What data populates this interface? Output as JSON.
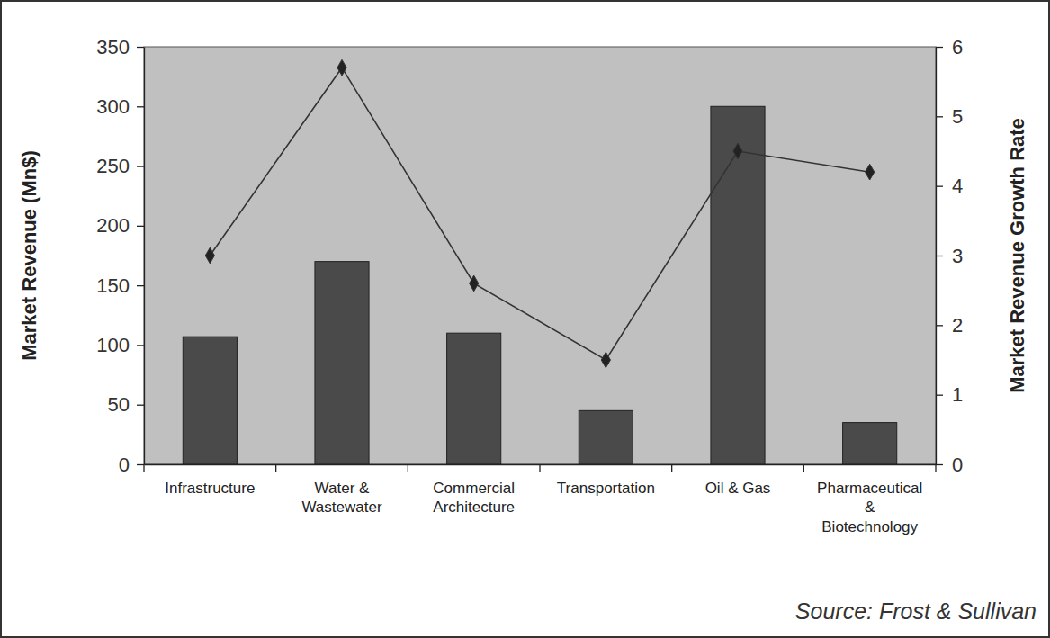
{
  "chart_data": {
    "type": "bar",
    "y_label": "Market Revenue (Mn$)",
    "y2_label": "Market Revenue Growth Rate",
    "source": "Source: Frost & Sullivan",
    "categories": [
      "Infrastructure",
      "Water &\nWastewater",
      "Commercial\nArchitecture",
      "Transportation",
      "Oil & Gas",
      "Pharmaceutical\n&\nBiotechnology"
    ],
    "series": [
      {
        "type": "bar",
        "color": "#4a4a4a",
        "values": [
          107,
          170,
          110,
          45,
          300,
          35
        ]
      },
      {
        "type": "line",
        "axis": "y2",
        "color": "#333333",
        "marker": "diamond",
        "line_style": "solid",
        "values": [
          3.0,
          5.7,
          2.6,
          1.5,
          4.5,
          4.2
        ]
      }
    ],
    "ylim": [
      0,
      350
    ],
    "yticks": [
      0,
      50,
      100,
      150,
      200,
      250,
      300,
      350
    ],
    "y2lim": [
      0,
      6
    ],
    "y2ticks": [
      0,
      1,
      2,
      3,
      4,
      5,
      6
    ],
    "grid": false
  }
}
